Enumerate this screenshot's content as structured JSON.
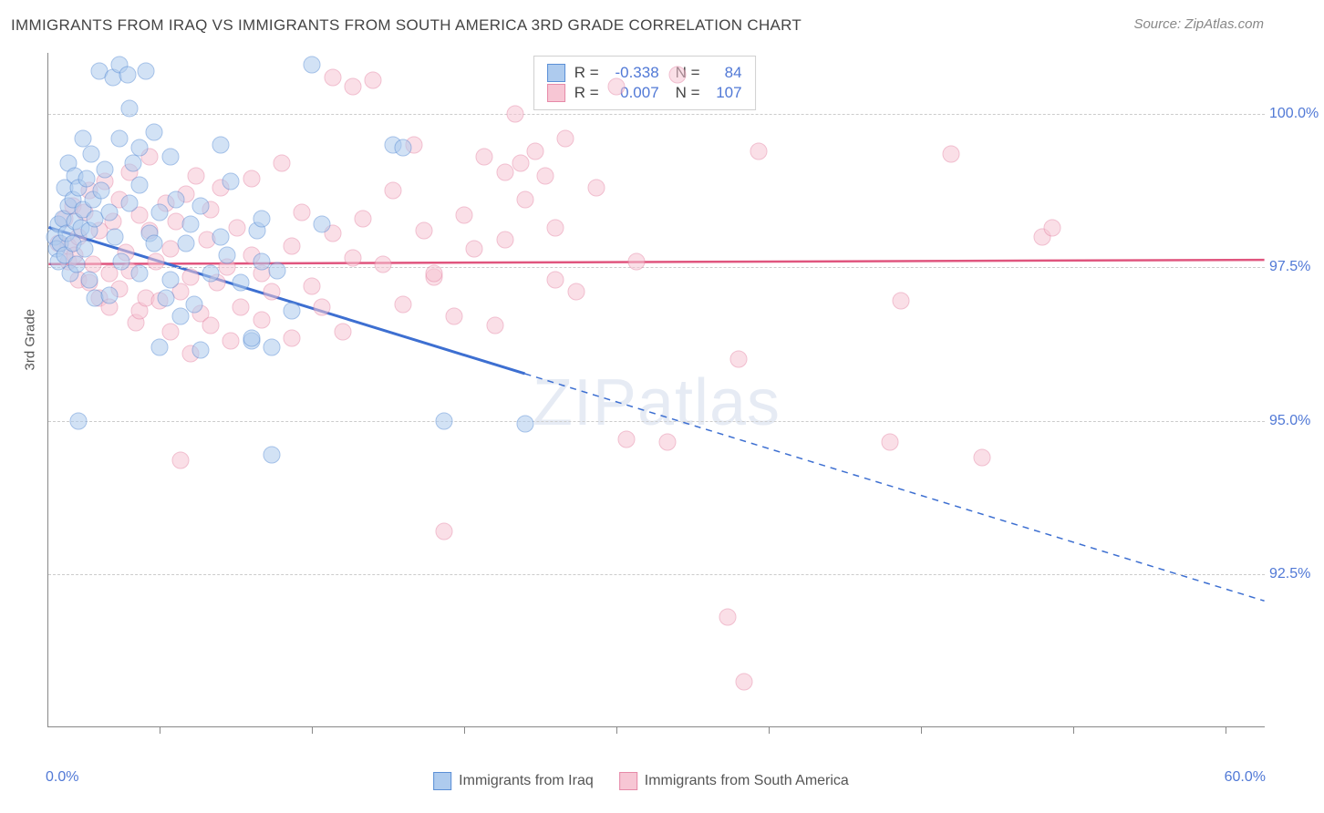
{
  "title": "IMMIGRANTS FROM IRAQ VS IMMIGRANTS FROM SOUTH AMERICA 3RD GRADE CORRELATION CHART",
  "source": "Source: ZipAtlas.com",
  "ylabel": "3rd Grade",
  "watermark": "ZIPatlas",
  "chart": {
    "type": "scatter",
    "xlim": [
      0,
      60
    ],
    "ylim": [
      90,
      101
    ],
    "x_min_label": "0.0%",
    "x_max_label": "60.0%",
    "yticks": [
      92.5,
      95.0,
      97.5,
      100.0
    ],
    "ytick_labels": [
      "92.5%",
      "95.0%",
      "97.5%",
      "100.0%"
    ],
    "xtick_minor_positions": [
      5.5,
      13,
      20.5,
      28,
      35.5,
      43,
      50.5,
      58
    ],
    "series_blue": {
      "label": "Immigrants from Iraq",
      "color_fill": "#aecbee",
      "color_stroke": "#5b8fd6",
      "r": "-0.338",
      "n": "84",
      "trend": {
        "x1": 0,
        "y1": 98.15,
        "x2": 60,
        "y2": 92.05,
        "solid_until_x": 23.5,
        "color": "#3d6fd1",
        "width": 3
      },
      "points": [
        [
          0.3,
          98.0
        ],
        [
          0.4,
          97.8
        ],
        [
          0.5,
          97.6
        ],
        [
          0.5,
          98.2
        ],
        [
          0.6,
          97.9
        ],
        [
          0.7,
          98.3
        ],
        [
          0.8,
          97.7
        ],
        [
          0.8,
          98.8
        ],
        [
          0.9,
          98.05
        ],
        [
          1.0,
          98.5
        ],
        [
          1.0,
          99.2
        ],
        [
          1.1,
          97.4
        ],
        [
          1.2,
          97.9
        ],
        [
          1.2,
          98.6
        ],
        [
          1.3,
          99.0
        ],
        [
          1.3,
          98.25
        ],
        [
          1.4,
          97.55
        ],
        [
          1.5,
          98.8
        ],
        [
          1.5,
          95.0
        ],
        [
          1.6,
          98.15
        ],
        [
          1.7,
          99.6
        ],
        [
          1.7,
          98.45
        ],
        [
          1.8,
          97.8
        ],
        [
          1.9,
          98.95
        ],
        [
          2.0,
          98.1
        ],
        [
          2.0,
          97.3
        ],
        [
          2.1,
          99.35
        ],
        [
          2.2,
          98.6
        ],
        [
          2.3,
          97.0
        ],
        [
          2.3,
          98.3
        ],
        [
          2.5,
          100.7
        ],
        [
          2.6,
          98.75
        ],
        [
          2.8,
          99.1
        ],
        [
          3.0,
          97.05
        ],
        [
          3.0,
          98.4
        ],
        [
          3.2,
          100.6
        ],
        [
          3.3,
          98.0
        ],
        [
          3.5,
          100.8
        ],
        [
          3.5,
          99.6
        ],
        [
          3.6,
          97.6
        ],
        [
          3.9,
          100.65
        ],
        [
          4.0,
          98.55
        ],
        [
          4.0,
          100.1
        ],
        [
          4.2,
          99.2
        ],
        [
          4.5,
          97.4
        ],
        [
          4.5,
          99.45
        ],
        [
          4.5,
          98.85
        ],
        [
          4.8,
          100.7
        ],
        [
          5.0,
          98.05
        ],
        [
          5.2,
          99.7
        ],
        [
          5.2,
          97.9
        ],
        [
          5.5,
          98.4
        ],
        [
          5.5,
          96.2
        ],
        [
          5.8,
          97.0
        ],
        [
          6.0,
          99.3
        ],
        [
          6.0,
          97.3
        ],
        [
          6.3,
          98.6
        ],
        [
          6.5,
          96.7
        ],
        [
          6.8,
          97.9
        ],
        [
          7.0,
          98.2
        ],
        [
          7.2,
          96.9
        ],
        [
          7.5,
          98.5
        ],
        [
          7.5,
          96.15
        ],
        [
          8.0,
          97.4
        ],
        [
          8.5,
          98.0
        ],
        [
          8.5,
          99.5
        ],
        [
          8.8,
          97.7
        ],
        [
          9.0,
          98.9
        ],
        [
          9.5,
          97.25
        ],
        [
          10.0,
          96.3
        ],
        [
          10.0,
          96.35
        ],
        [
          10.3,
          98.1
        ],
        [
          10.5,
          97.6
        ],
        [
          10.5,
          98.3
        ],
        [
          11.0,
          96.2
        ],
        [
          11.0,
          94.45
        ],
        [
          11.3,
          97.45
        ],
        [
          12.0,
          96.8
        ],
        [
          13.0,
          100.8
        ],
        [
          13.5,
          98.2
        ],
        [
          17.0,
          99.5
        ],
        [
          17.5,
          99.45
        ],
        [
          19.5,
          95.0
        ],
        [
          23.5,
          94.95
        ]
      ]
    },
    "series_pink": {
      "label": "Immigrants from South America",
      "color_fill": "#f7c6d4",
      "color_stroke": "#e68aa8",
      "r": "0.007",
      "n": "107",
      "trend": {
        "x1": 0,
        "y1": 97.55,
        "x2": 60,
        "y2": 97.62,
        "color": "#e0557e",
        "width": 2.5
      },
      "points": [
        [
          0.5,
          97.9
        ],
        [
          0.8,
          98.3
        ],
        [
          1.0,
          97.6
        ],
        [
          1.0,
          97.85
        ],
        [
          1.2,
          98.5
        ],
        [
          1.3,
          97.7
        ],
        [
          1.5,
          98.0
        ],
        [
          1.5,
          97.3
        ],
        [
          1.8,
          98.4
        ],
        [
          2.0,
          97.25
        ],
        [
          2.0,
          98.75
        ],
        [
          2.2,
          97.55
        ],
        [
          2.5,
          98.1
        ],
        [
          2.5,
          97.0
        ],
        [
          2.8,
          98.9
        ],
        [
          3.0,
          97.4
        ],
        [
          3.0,
          96.85
        ],
        [
          3.2,
          98.25
        ],
        [
          3.5,
          97.15
        ],
        [
          3.5,
          98.6
        ],
        [
          3.8,
          97.75
        ],
        [
          4.0,
          99.05
        ],
        [
          4.0,
          97.45
        ],
        [
          4.3,
          96.6
        ],
        [
          4.5,
          98.35
        ],
        [
          4.5,
          96.8
        ],
        [
          4.8,
          97.0
        ],
        [
          5.0,
          98.1
        ],
        [
          5.0,
          99.3
        ],
        [
          5.3,
          97.6
        ],
        [
          5.5,
          96.95
        ],
        [
          5.8,
          98.55
        ],
        [
          6.0,
          96.45
        ],
        [
          6.0,
          97.8
        ],
        [
          6.3,
          98.25
        ],
        [
          6.5,
          97.1
        ],
        [
          6.5,
          94.35
        ],
        [
          6.8,
          98.7
        ],
        [
          7.0,
          96.1
        ],
        [
          7.0,
          97.35
        ],
        [
          7.3,
          99.0
        ],
        [
          7.5,
          96.75
        ],
        [
          7.8,
          97.95
        ],
        [
          8.0,
          98.45
        ],
        [
          8.0,
          96.55
        ],
        [
          8.3,
          97.25
        ],
        [
          8.5,
          98.8
        ],
        [
          8.8,
          97.5
        ],
        [
          9.0,
          96.3
        ],
        [
          9.3,
          98.15
        ],
        [
          9.5,
          96.85
        ],
        [
          10.0,
          97.7
        ],
        [
          10.0,
          98.95
        ],
        [
          10.5,
          96.65
        ],
        [
          10.5,
          97.4
        ],
        [
          11.0,
          97.1
        ],
        [
          11.5,
          99.2
        ],
        [
          12.0,
          96.35
        ],
        [
          12.0,
          97.85
        ],
        [
          12.5,
          98.4
        ],
        [
          13.0,
          97.2
        ],
        [
          13.5,
          96.85
        ],
        [
          14.0,
          100.6
        ],
        [
          14.0,
          98.05
        ],
        [
          14.5,
          96.45
        ],
        [
          15.0,
          97.65
        ],
        [
          15.0,
          100.45
        ],
        [
          15.5,
          98.3
        ],
        [
          16.0,
          100.55
        ],
        [
          16.5,
          97.55
        ],
        [
          17.0,
          98.75
        ],
        [
          17.5,
          96.9
        ],
        [
          18.0,
          99.5
        ],
        [
          18.5,
          98.1
        ],
        [
          19.0,
          97.35
        ],
        [
          19.0,
          97.4
        ],
        [
          19.5,
          93.2
        ],
        [
          20.0,
          96.7
        ],
        [
          20.5,
          98.35
        ],
        [
          21.0,
          97.8
        ],
        [
          21.5,
          99.3
        ],
        [
          22.0,
          96.55
        ],
        [
          22.5,
          97.95
        ],
        [
          22.5,
          99.05
        ],
        [
          23.0,
          100.0
        ],
        [
          23.3,
          99.2
        ],
        [
          23.5,
          98.6
        ],
        [
          24.0,
          99.4
        ],
        [
          24.5,
          99.0
        ],
        [
          25.0,
          98.15
        ],
        [
          25.0,
          97.3
        ],
        [
          25.5,
          99.6
        ],
        [
          26.0,
          97.1
        ],
        [
          27.0,
          98.8
        ],
        [
          28.0,
          100.45
        ],
        [
          28.5,
          94.7
        ],
        [
          29.0,
          97.6
        ],
        [
          30.5,
          94.65
        ],
        [
          31.0,
          100.65
        ],
        [
          33.5,
          91.8
        ],
        [
          34.0,
          96.0
        ],
        [
          34.3,
          90.75
        ],
        [
          35.0,
          99.4
        ],
        [
          41.5,
          94.65
        ],
        [
          42.0,
          96.95
        ],
        [
          44.5,
          99.35
        ],
        [
          46.0,
          94.4
        ],
        [
          49.0,
          98.0
        ],
        [
          49.5,
          98.15
        ]
      ]
    }
  },
  "legend_top": {
    "rlabel": "R =",
    "nlabel": "N ="
  },
  "legend_bottom": {
    "blue": "Immigrants from Iraq",
    "pink": "Immigrants from South America"
  }
}
